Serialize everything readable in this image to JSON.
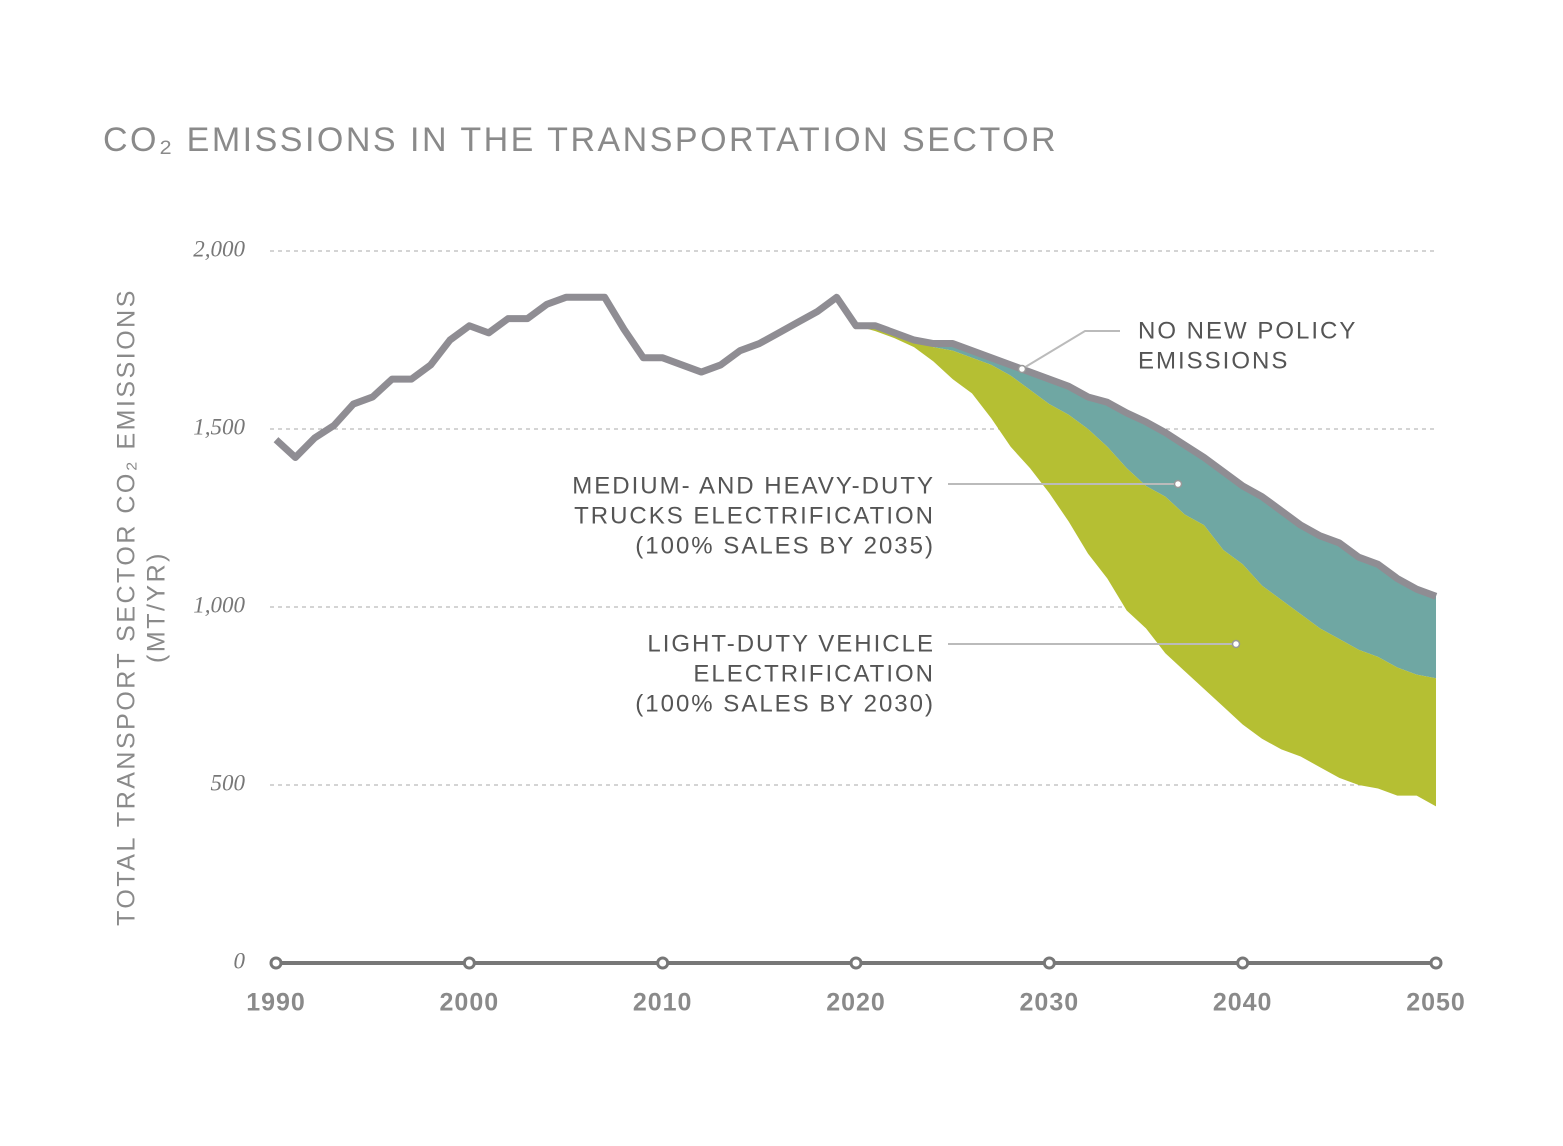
{
  "chart_data": {
    "type": "area",
    "title": "CO₂ EMISSIONS IN THE TRANSPORTATION SECTOR",
    "y_label": [
      "TOTAL TRANSPORT SECTOR CO₂ EMISSIONS",
      "(MT/YR)"
    ],
    "x": [
      1990,
      1991,
      1992,
      1993,
      1994,
      1995,
      1996,
      1997,
      1998,
      1999,
      2000,
      2001,
      2002,
      2003,
      2004,
      2005,
      2006,
      2007,
      2008,
      2009,
      2010,
      2011,
      2012,
      2013,
      2014,
      2015,
      2016,
      2017,
      2018,
      2019,
      2020,
      2021,
      2022,
      2023,
      2024,
      2025,
      2026,
      2027,
      2028,
      2029,
      2030,
      2031,
      2032,
      2033,
      2034,
      2035,
      2036,
      2037,
      2038,
      2039,
      2040,
      2041,
      2042,
      2043,
      2044,
      2045,
      2046,
      2047,
      2048,
      2049,
      2050
    ],
    "series": [
      {
        "name": [
          "NO NEW POLICY",
          "EMISSIONS"
        ],
        "color": "#8f8d93",
        "values": [
          1470,
          1420,
          1475,
          1510,
          1570,
          1590,
          1640,
          1640,
          1680,
          1750,
          1790,
          1770,
          1810,
          1810,
          1850,
          1870,
          1870,
          1870,
          1780,
          1700,
          1700,
          1680,
          1660,
          1680,
          1720,
          1740,
          1770,
          1800,
          1830,
          1870,
          1790,
          1790,
          1770,
          1750,
          1740,
          1740,
          1720,
          1700,
          1680,
          1660,
          1640,
          1620,
          1590,
          1575,
          1545,
          1520,
          1490,
          1455,
          1420,
          1380,
          1340,
          1310,
          1270,
          1230,
          1200,
          1180,
          1140,
          1120,
          1080,
          1050,
          1030
        ]
      },
      {
        "name": [
          "MEDIUM- AND HEAVY-DUTY",
          "TRUCKS ELECTRIFICATION",
          "(100% SALES BY 2035)"
        ],
        "color": "#6fa7a3",
        "values": [
          null,
          null,
          null,
          null,
          null,
          null,
          null,
          null,
          null,
          null,
          null,
          null,
          null,
          null,
          null,
          null,
          null,
          null,
          null,
          null,
          null,
          null,
          null,
          null,
          null,
          null,
          null,
          null,
          null,
          null,
          1790,
          1785,
          1770,
          1750,
          1730,
          1720,
          1700,
          1680,
          1650,
          1610,
          1570,
          1540,
          1500,
          1450,
          1390,
          1340,
          1310,
          1260,
          1230,
          1160,
          1120,
          1060,
          1020,
          980,
          940,
          910,
          880,
          860,
          830,
          810,
          800
        ]
      },
      {
        "name": [
          "LIGHT-DUTY VEHICLE",
          "ELECTRIFICATION",
          "(100% SALES BY 2030)"
        ],
        "color": "#b5bf33",
        "values": [
          null,
          null,
          null,
          null,
          null,
          null,
          null,
          null,
          null,
          null,
          null,
          null,
          null,
          null,
          null,
          null,
          null,
          null,
          null,
          null,
          null,
          null,
          null,
          null,
          null,
          null,
          null,
          null,
          null,
          null,
          1790,
          1775,
          1755,
          1730,
          1690,
          1640,
          1600,
          1530,
          1450,
          1390,
          1320,
          1240,
          1150,
          1080,
          990,
          940,
          870,
          820,
          770,
          720,
          670,
          630,
          600,
          580,
          550,
          520,
          500,
          490,
          470,
          470,
          440
        ]
      }
    ],
    "xlim": [
      1990,
      2050
    ],
    "xticks": [
      1990,
      2000,
      2010,
      2020,
      2030,
      2040,
      2050
    ],
    "ylim": [
      0,
      2000
    ],
    "yticks": [
      0,
      500,
      {
        "value": 1000,
        "label": "1,000"
      },
      {
        "value": 1500,
        "label": "1,500"
      },
      {
        "value": 2000,
        "label": "2,000"
      }
    ],
    "grid": true
  }
}
